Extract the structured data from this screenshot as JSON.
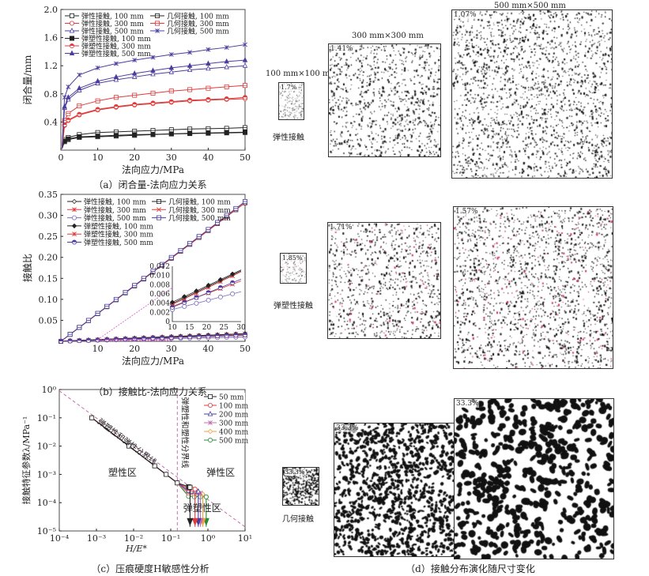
{
  "chart_data": [
    {
      "type": "line",
      "id": "a",
      "caption": "（a）闭合量-法向应力关系",
      "xlabel": "法向应力/MPa",
      "ylabel": "闭合量/mm",
      "xlim": [
        0,
        50
      ],
      "ylim": [
        0,
        2.0
      ],
      "xticks": [
        0,
        10,
        20,
        30,
        40,
        50
      ],
      "yticks": [
        0.4,
        0.8,
        1.2,
        1.6,
        2.0
      ],
      "legend_placement": "top-left",
      "x": [
        1,
        2,
        5,
        10,
        15,
        20,
        25,
        30,
        35,
        40,
        45,
        50
      ],
      "series": [
        {
          "name": "弹性接触, 100 mm",
          "color": "#222222",
          "marker": "square-open",
          "values": [
            0.12,
            0.15,
            0.18,
            0.19,
            0.2,
            0.21,
            0.22,
            0.23,
            0.235,
            0.24,
            0.245,
            0.25
          ]
        },
        {
          "name": "几何接触, 100 mm",
          "color": "#222222",
          "marker": "square-cross",
          "values": [
            0.15,
            0.18,
            0.22,
            0.25,
            0.26,
            0.27,
            0.28,
            0.29,
            0.3,
            0.305,
            0.31,
            0.32
          ]
        },
        {
          "name": "弹性接触, 300 mm",
          "color": "#e03a3a",
          "marker": "circle-open",
          "values": [
            0.35,
            0.42,
            0.5,
            0.57,
            0.61,
            0.64,
            0.66,
            0.68,
            0.7,
            0.71,
            0.72,
            0.73
          ]
        },
        {
          "name": "几何接触, 300 mm",
          "color": "#e03a3a",
          "marker": "square-cross",
          "values": [
            0.42,
            0.52,
            0.63,
            0.7,
            0.75,
            0.78,
            0.81,
            0.84,
            0.86,
            0.88,
            0.9,
            0.92
          ]
        },
        {
          "name": "弹性接触, 500 mm",
          "color": "#4b3d9e",
          "marker": "triangle-open",
          "values": [
            0.6,
            0.72,
            0.85,
            0.95,
            1.0,
            1.04,
            1.08,
            1.11,
            1.14,
            1.16,
            1.18,
            1.2
          ]
        },
        {
          "name": "几何接触, 500 mm",
          "color": "#4b3d9e",
          "marker": "star",
          "values": [
            0.75,
            0.9,
            1.07,
            1.17,
            1.23,
            1.28,
            1.32,
            1.36,
            1.39,
            1.43,
            1.46,
            1.5
          ]
        },
        {
          "name": "弹塑性接触, 100 mm",
          "color": "#222222",
          "marker": "square-half",
          "values": [
            0.13,
            0.16,
            0.19,
            0.2,
            0.21,
            0.22,
            0.225,
            0.23,
            0.24,
            0.245,
            0.25,
            0.255
          ]
        },
        {
          "name": "弹塑性接触, 300 mm",
          "color": "#e03a3a",
          "marker": "circle-half",
          "values": [
            0.36,
            0.43,
            0.51,
            0.58,
            0.62,
            0.65,
            0.67,
            0.69,
            0.71,
            0.72,
            0.73,
            0.75
          ]
        },
        {
          "name": "弹塑性接触, 500 mm",
          "color": "#4b3d9e",
          "marker": "triangle-filled",
          "values": [
            0.62,
            0.75,
            0.88,
            0.98,
            1.04,
            1.09,
            1.13,
            1.17,
            1.2,
            1.23,
            1.26,
            1.28
          ]
        }
      ]
    },
    {
      "type": "line",
      "id": "b",
      "caption": "（b）接触比-法向应力关系",
      "xlabel": "法向应力/MPa",
      "ylabel": "接触比",
      "xlim": [
        0,
        50
      ],
      "ylim": [
        0,
        0.35
      ],
      "xticks": [
        10,
        20,
        30,
        40,
        50
      ],
      "yticks": [
        0.05,
        0.1,
        0.15,
        0.2,
        0.25,
        0.3,
        0.35
      ],
      "legend_placement": "top-left",
      "x": [
        0,
        10,
        20,
        30,
        40,
        50
      ],
      "series": [
        {
          "name": "弹性接触, 100 mm",
          "color": "#222222",
          "marker": "diamond-open",
          "values": [
            0.00035,
            0.0039,
            0.00745,
            0.011,
            0.01455,
            0.0181
          ]
        },
        {
          "name": "几何接触, 100 mm",
          "color": "#222222",
          "marker": "square-cross",
          "values": [
            0,
            0.066,
            0.132,
            0.198,
            0.264,
            0.33
          ]
        },
        {
          "name": "弹性接触, 300 mm",
          "color": "#e03a3a",
          "marker": "star",
          "values": [
            0.00015,
            0.0037,
            0.00725,
            0.0108,
            0.01435,
            0.0179
          ]
        },
        {
          "name": "几何接触, 300 mm",
          "color": "#e03a3a",
          "marker": "x",
          "values": [
            0,
            0.066,
            0.132,
            0.198,
            0.264,
            0.33
          ]
        },
        {
          "name": "弹性接触, 500 mm",
          "color": "#7a6cc0",
          "marker": "circle-open",
          "values": [
            0.00065,
            0.0026,
            0.00455,
            0.0065,
            0.00845,
            0.0104
          ]
        },
        {
          "name": "几何接触, 500 mm",
          "color": "#4b3d9e",
          "marker": "square-cross",
          "values": [
            0,
            0.0665,
            0.133,
            0.1995,
            0.266,
            0.333
          ]
        },
        {
          "name": "弹塑性接触, 100 mm",
          "color": "#222222",
          "marker": "diamond-half",
          "values": [
            0.0007,
            0.0042,
            0.0077,
            0.0112,
            0.0147,
            0.0182
          ]
        },
        {
          "name": "弹塑性接触, 300 mm",
          "color": "#e03a3a",
          "marker": "star",
          "values": [
            0.00055,
            0.0033,
            0.00605,
            0.0088,
            0.01155,
            0.0143
          ]
        },
        {
          "name": "弹塑性接触, 500 mm",
          "color": "#4b3d9e",
          "marker": "circle-half",
          "values": [
            5e-05,
            0.0031,
            0.00615,
            0.0092,
            0.01225,
            0.0153
          ]
        }
      ],
      "inset": {
        "xlim": [
          10,
          30
        ],
        "ylim": [
          0,
          0.012
        ],
        "xticks": [
          10,
          15,
          20,
          25,
          30
        ],
        "yticks": [
          0,
          0.002,
          0.004,
          0.006,
          0.008,
          0.01,
          0.012
        ],
        "highlight_color": "#d040c0"
      }
    },
    {
      "type": "line",
      "id": "c",
      "caption": "（c）压痕硬度H敏感性分析",
      "xlabel": "H/E*",
      "ylabel": "接触特征参数λ/MPa⁻¹",
      "xscale": "log",
      "yscale": "log",
      "xlim": [
        0.0001,
        10
      ],
      "ylim": [
        1e-05,
        1
      ],
      "xticks": [
        "10⁻⁴",
        "10⁻³",
        "10⁻²",
        "10⁻¹",
        "10⁰",
        "10¹"
      ],
      "yticks": [
        "10⁻⁵",
        "10⁻⁴",
        "10⁻³",
        "10⁻²",
        "10⁻¹",
        "10⁰"
      ],
      "legend_placement": "top-right",
      "shared_points": {
        "x": [
          0.00075,
          0.0075,
          0.037,
          0.075,
          0.15
        ],
        "y": [
          0.1,
          0.01,
          0.002,
          0.001,
          0.0005
        ]
      },
      "series": [
        {
          "name": "50 mm",
          "color": "#222222",
          "marker": "square-open",
          "plateau": 0.00035,
          "end_x": 0.33
        },
        {
          "name": "100 mm",
          "color": "#e03a3a",
          "marker": "circle-open",
          "plateau": 0.0003,
          "end_x": 0.45
        },
        {
          "name": "200 mm",
          "color": "#4b3d9e",
          "marker": "triangle-open",
          "plateau": 0.00025,
          "end_x": 0.55
        },
        {
          "name": "300 mm",
          "color": "#c070b0",
          "marker": "star",
          "plateau": 0.00022,
          "end_x": 0.63
        },
        {
          "name": "400 mm",
          "color": "#f0a040",
          "marker": "diamond-open",
          "plateau": 0.0002,
          "end_x": 0.73
        },
        {
          "name": "500 mm",
          "color": "#2a8a3a",
          "marker": "circle-open",
          "plateau": 0.00016,
          "end_x": 0.9
        }
      ],
      "annotations": {
        "diag_line": "弹塑性和弹性分界线",
        "vert_line": "弹塑性和塑性分界线",
        "plastic": "塑性区",
        "elastic": "弹性区",
        "elastoplastic": "弹塑性区"
      },
      "boundary_color": "#c060a0"
    }
  ],
  "panel_d": {
    "caption": "（d）接触分布演化随尺寸变化",
    "sizes": [
      "100 mm×100 mm",
      "300 mm×300 mm",
      "500 mm×500 mm"
    ],
    "rows": [
      {
        "label": "弹性接触",
        "percents": [
          "1.7%",
          "1.41%",
          "1.07%"
        ]
      },
      {
        "label": "弹塑性接触",
        "percents": [
          "1.85%",
          "1.71%",
          "1.57%"
        ]
      },
      {
        "label": "几何接触",
        "percents": [
          "33.3%",
          "33.3%",
          "33.3%"
        ]
      }
    ]
  }
}
